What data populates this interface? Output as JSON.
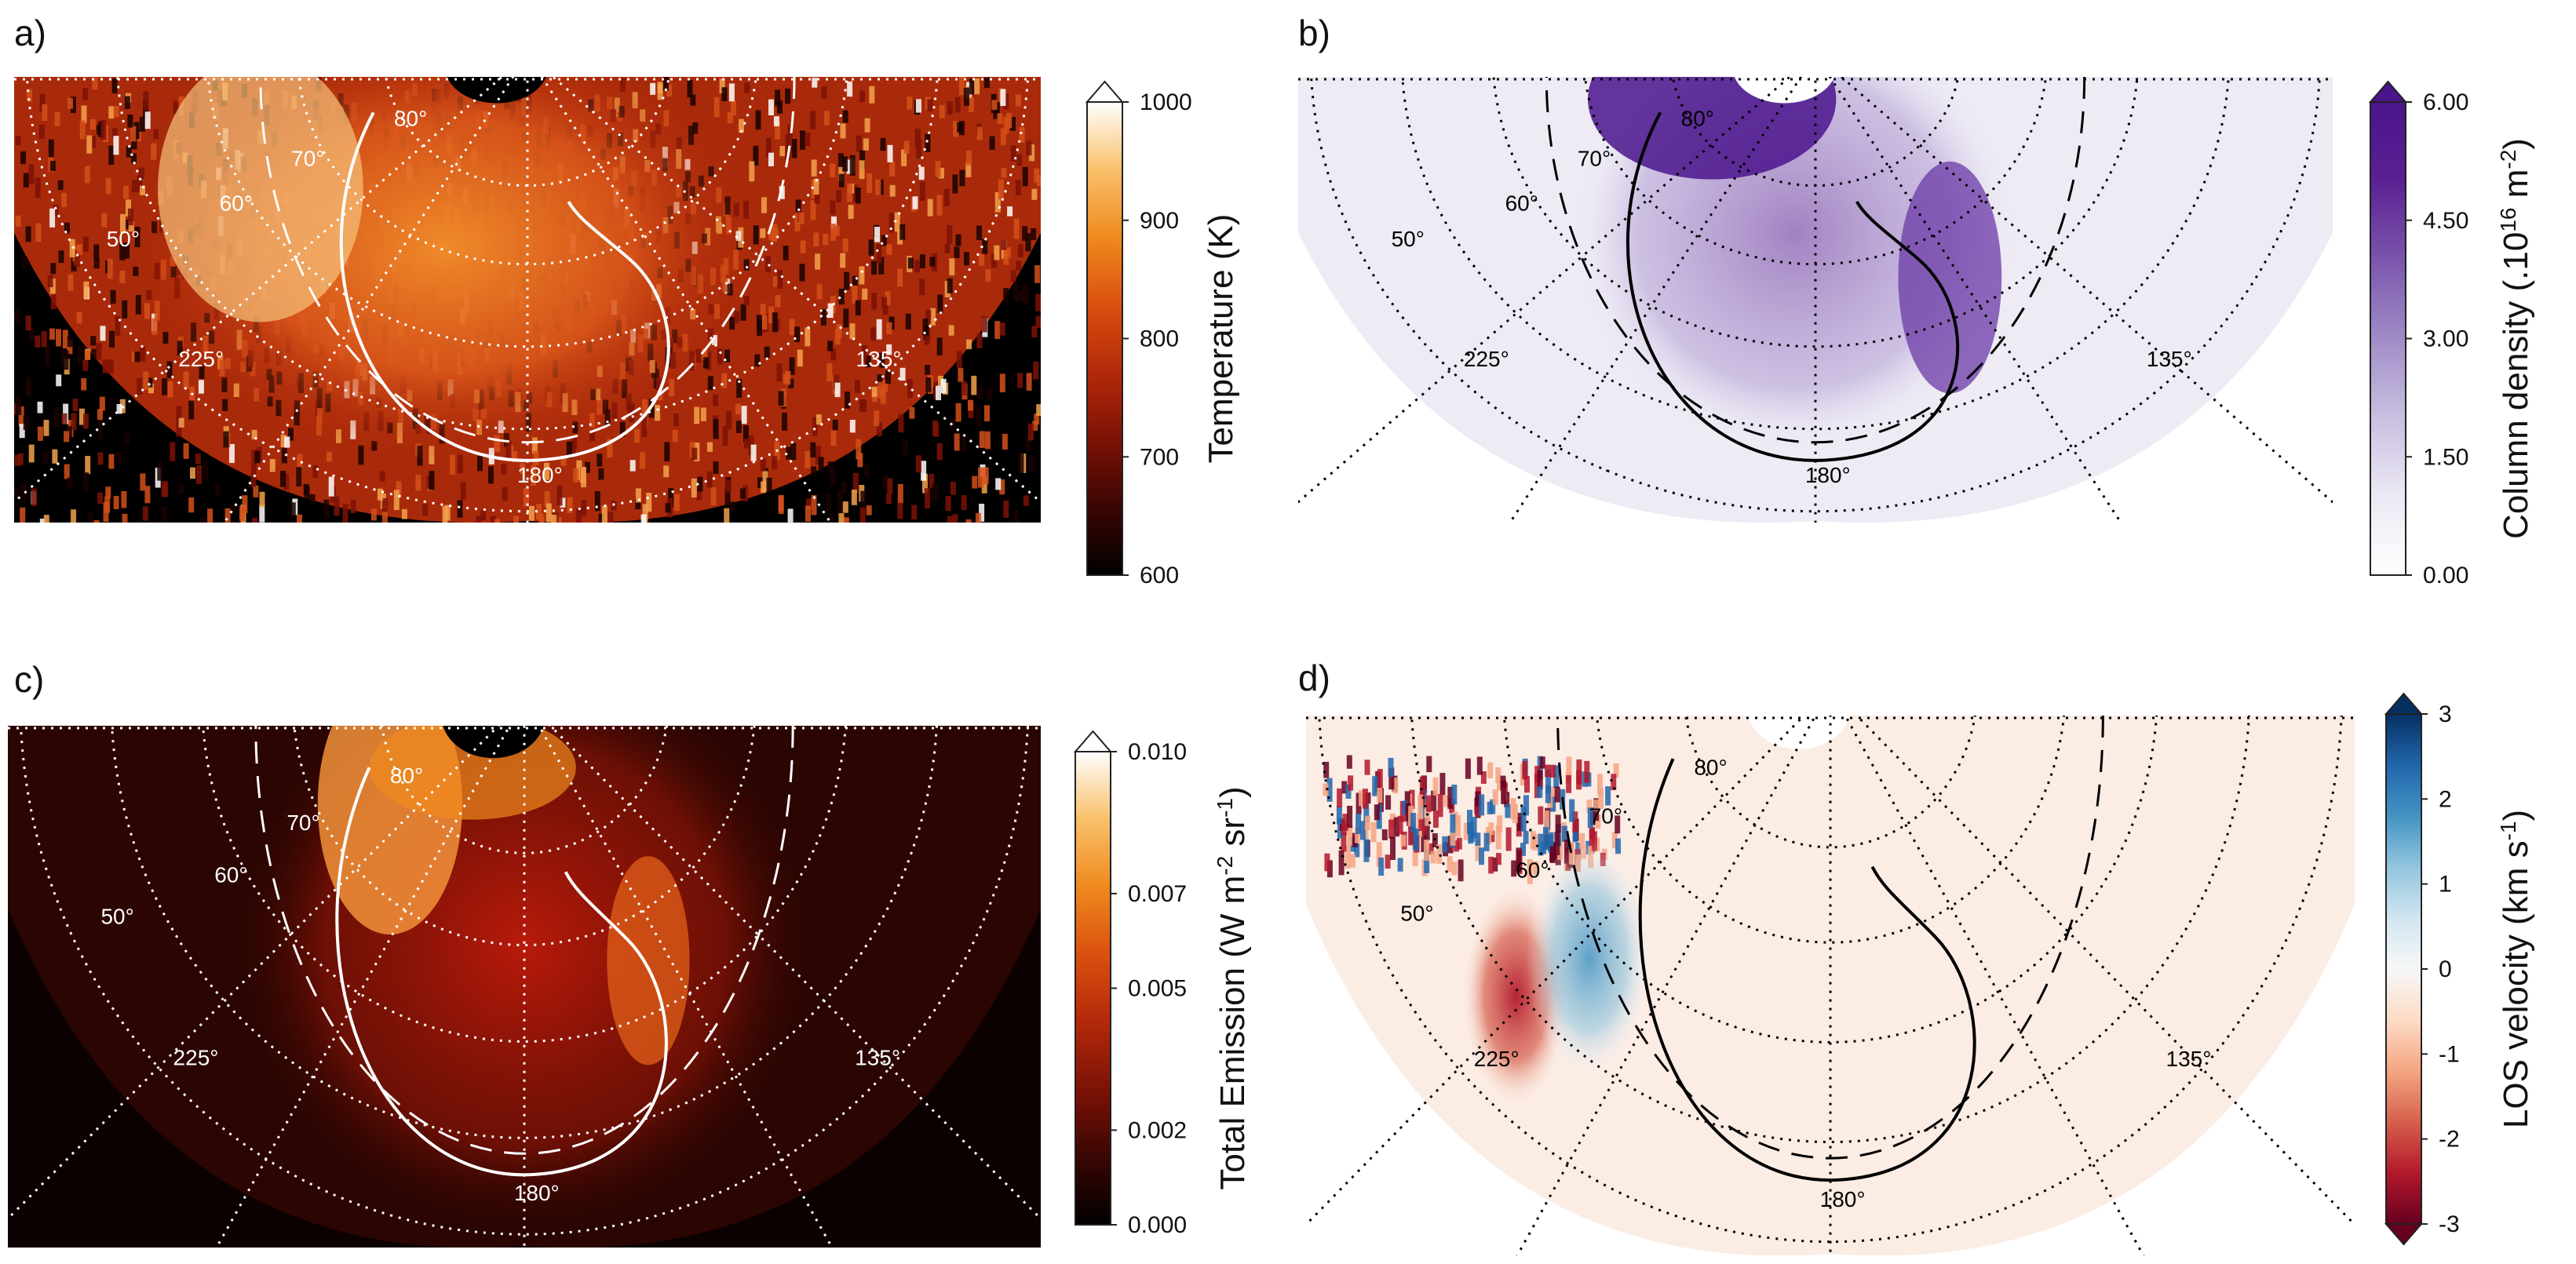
{
  "figure": {
    "description_hidden": false
  },
  "chart_data": [
    {
      "type": "heatmap",
      "panel_label": "a)",
      "colorbar": {
        "label": "Temperature (K)",
        "label_parts": [
          {
            "t": "Temperature (K)"
          }
        ],
        "range": [
          600,
          1000
        ],
        "ticks": [
          600,
          700,
          800,
          900,
          1000
        ],
        "tick_labels": [
          "600",
          "700",
          "800",
          "900",
          "1000"
        ],
        "extend": "max",
        "colors": [
          "#000000",
          "#3a0603",
          "#7c1206",
          "#b3290a",
          "#d9500f",
          "#ef8a1e",
          "#f9c06a",
          "#ffffff"
        ]
      },
      "map_labels": [
        "80°",
        "70°",
        "60°",
        "50°",
        "225°",
        "135°",
        "180°"
      ],
      "grid_color": "#ffffff",
      "contour_color": "#ffffff"
    },
    {
      "type": "heatmap",
      "panel_label": "b)",
      "colorbar": {
        "label": "Column density (.10¹⁶ m⁻²)",
        "label_parts": [
          {
            "t": "Column density (.10"
          },
          {
            "t": "16",
            "sup": true
          },
          {
            "t": " m"
          },
          {
            "t": "-2",
            "sup": true
          },
          {
            "t": ")"
          }
        ],
        "range": [
          0.0,
          6.0
        ],
        "ticks": [
          0.0,
          1.5,
          3.0,
          4.5,
          6.0
        ],
        "tick_labels": [
          "0.00",
          "1.50",
          "3.00",
          "4.50",
          "6.00"
        ],
        "extend": "max",
        "colors": [
          "#ffffff",
          "#ece8f4",
          "#c9bfe0",
          "#a08cc7",
          "#7a55ad",
          "#5b2192",
          "#4a148c"
        ]
      },
      "map_labels": [
        "80°",
        "70°",
        "60°",
        "50°",
        "225°",
        "135°",
        "180°"
      ],
      "grid_color": "#000000",
      "contour_color": "#000000"
    },
    {
      "type": "heatmap",
      "panel_label": "c)",
      "colorbar": {
        "label": "Total Emission (W m⁻² sr⁻¹)",
        "label_parts": [
          {
            "t": "Total Emission (W m"
          },
          {
            "t": "-2",
            "sup": true
          },
          {
            "t": " sr"
          },
          {
            "t": "-1",
            "sup": true
          },
          {
            "t": ")"
          }
        ],
        "range": [
          0.0,
          0.01
        ],
        "ticks": [
          0.0,
          0.002,
          0.005,
          0.007,
          0.01
        ],
        "tick_labels": [
          "0.000",
          "0.002",
          "0.005",
          "0.007",
          "0.010"
        ],
        "extend": "max",
        "colors": [
          "#000000",
          "#3a0603",
          "#7c1206",
          "#b3290a",
          "#d9500f",
          "#ef8a1e",
          "#f9c06a",
          "#ffffff"
        ]
      },
      "map_labels": [
        "80°",
        "70°",
        "60°",
        "50°",
        "225°",
        "135°",
        "180°"
      ],
      "grid_color": "#ffffff",
      "contour_color": "#ffffff"
    },
    {
      "type": "heatmap",
      "panel_label": "d)",
      "colorbar": {
        "label": "LOS velocity (km s⁻¹)",
        "label_parts": [
          {
            "t": "LOS velocity (km s"
          },
          {
            "t": "-1",
            "sup": true
          },
          {
            "t": ")"
          }
        ],
        "range": [
          -3,
          3
        ],
        "ticks": [
          -3,
          -2,
          -1,
          0,
          1,
          2,
          3
        ],
        "tick_labels": [
          "-3",
          "-2",
          "-1",
          "0",
          "1",
          "2",
          "3"
        ],
        "extend": "both",
        "colors": [
          "#67001f",
          "#b2182b",
          "#d6604d",
          "#f4a582",
          "#fddbc7",
          "#f7f7f7",
          "#d1e5f0",
          "#92c5de",
          "#4393c3",
          "#2166ac",
          "#053061"
        ]
      },
      "map_labels": [
        "80°",
        "70°",
        "60°",
        "50°",
        "225°",
        "135°",
        "180°"
      ],
      "grid_color": "#000000",
      "contour_color": "#000000"
    }
  ]
}
